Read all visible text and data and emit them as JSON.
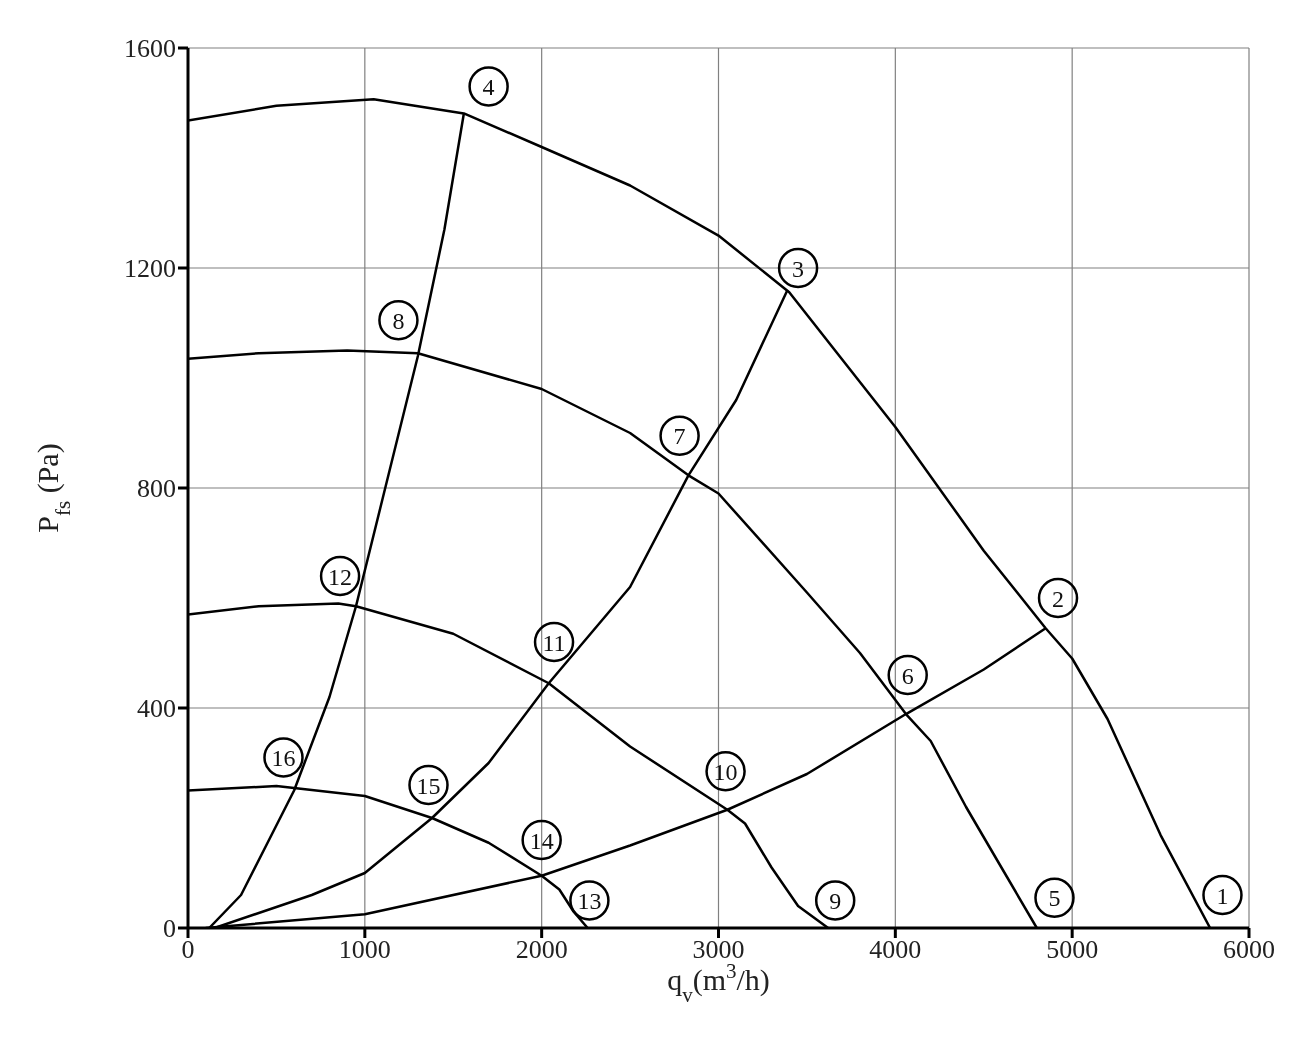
{
  "chart_data": {
    "type": "line",
    "xlabel": "q$_{v}$(m$^{3}$/h)",
    "ylabel": "P$_{fs}$ (Pa)",
    "xlim": [
      0,
      6000
    ],
    "xticks": [
      0,
      1000,
      2000,
      3000,
      4000,
      5000,
      6000
    ],
    "ylim": [
      0,
      1600
    ],
    "yticks": [
      0,
      400,
      800,
      1200,
      1600
    ],
    "grid": true,
    "legend": false,
    "marker": "none",
    "line_style": "solid",
    "series": [
      {
        "color": "#000000",
        "x": [
          0,
          500,
          1050,
          1560,
          2000,
          2500,
          3000,
          3400,
          4000,
          4500,
          4850,
          5000,
          5200,
          5500,
          5780
        ],
        "values": [
          1468,
          1495,
          1507,
          1481,
          1420,
          1350,
          1259,
          1156,
          911,
          686,
          545,
          490,
          380,
          169,
          0
        ]
      },
      {
        "color": "#000000",
        "x": [
          0,
          400,
          900,
          1300,
          2000,
          2500,
          2830,
          3000,
          3500,
          3800,
          4060,
          4200,
          4400,
          4600,
          4800
        ],
        "values": [
          1035,
          1045,
          1050,
          1045,
          980,
          900,
          823,
          790,
          610,
          500,
          389,
          340,
          220,
          110,
          0
        ]
      },
      {
        "color": "#000000",
        "x": [
          0,
          400,
          850,
          950,
          1500,
          2040,
          2500,
          3050,
          3150,
          3300,
          3450,
          3620
        ],
        "values": [
          570,
          585,
          590,
          585,
          535,
          445,
          330,
          215,
          190,
          110,
          40,
          0
        ]
      },
      {
        "color": "#000000",
        "x": [
          0,
          500,
          1000,
          1380,
          1700,
          2000,
          2100,
          2180,
          2260
        ],
        "values": [
          250,
          258,
          240,
          200,
          155,
          95,
          70,
          30,
          0
        ]
      },
      {
        "color": "#000000",
        "x": [
          120,
          300,
          600,
          800,
          950,
          1100,
          1300,
          1450,
          1560
        ],
        "values": [
          0,
          60,
          250,
          420,
          585,
          780,
          1040,
          1270,
          1481
        ]
      },
      {
        "color": "#000000",
        "x": [
          150,
          700,
          1000,
          1380,
          1700,
          2040,
          2500,
          2830,
          3100,
          3390
        ],
        "values": [
          0,
          60,
          100,
          200,
          300,
          445,
          620,
          823,
          960,
          1160
        ]
      },
      {
        "color": "#000000",
        "x": [
          100,
          1000,
          2000,
          2500,
          3050,
          3500,
          4060,
          4500,
          4850
        ],
        "values": [
          0,
          25,
          95,
          150,
          215,
          280,
          389,
          470,
          545
        ]
      }
    ],
    "annotations": [
      {
        "text": "1",
        "x": 5850,
        "y": 60
      },
      {
        "text": "2",
        "x": 4920,
        "y": 600
      },
      {
        "text": "3",
        "x": 3450,
        "y": 1200
      },
      {
        "text": "4",
        "x": 1700,
        "y": 1530
      },
      {
        "text": "5",
        "x": 4900,
        "y": 55
      },
      {
        "text": "6",
        "x": 4070,
        "y": 460
      },
      {
        "text": "7",
        "x": 2780,
        "y": 895
      },
      {
        "text": "8",
        "x": 1190,
        "y": 1105
      },
      {
        "text": "9",
        "x": 3660,
        "y": 50
      },
      {
        "text": "10",
        "x": 3040,
        "y": 285
      },
      {
        "text": "11",
        "x": 2070,
        "y": 520
      },
      {
        "text": "12",
        "x": 860,
        "y": 640
      },
      {
        "text": "13",
        "x": 2270,
        "y": 50
      },
      {
        "text": "14",
        "x": 2000,
        "y": 160
      },
      {
        "text": "15",
        "x": 1360,
        "y": 260
      },
      {
        "text": "16",
        "x": 540,
        "y": 310
      }
    ]
  }
}
